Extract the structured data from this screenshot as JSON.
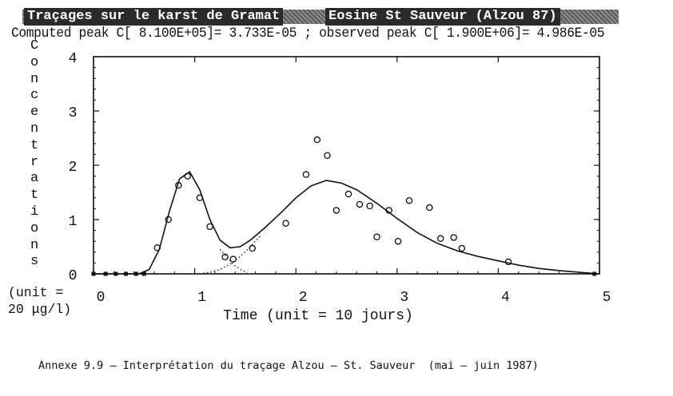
{
  "header": {
    "title_left": "Traçages sur le karst de Gramat",
    "title_right": "Eosine St Sauveur (Alzou 87)",
    "subtitle": "Computed peak C[ 8.100E+05]= 3.733E-05 ; observed peak C[ 1.900E+06]= 4.986E-05"
  },
  "y_axis_label_letters": [
    "C",
    "o",
    "n",
    "c",
    "e",
    "n",
    "t",
    "r",
    "a",
    "t",
    "i",
    "o",
    "n",
    "s"
  ],
  "y_unit_line1": "(unit =",
  "y_unit_line2": "20 μg/l)",
  "caption": "Annexe 9.9 – Interprétation du traçage Alzou – St. Sauveur  (mai – juin 1987)",
  "chart_data": {
    "type": "scatter",
    "xlabel": "Time (unit = 10 jours)",
    "ylabel": "Concentrations",
    "xlim": [
      0,
      5
    ],
    "ylim": [
      0,
      4
    ],
    "x_ticks": [
      "0",
      "1",
      "2",
      "3",
      "4",
      "5"
    ],
    "y_ticks": [
      "0",
      "1",
      "2",
      "3",
      "4"
    ],
    "series": [
      {
        "kind": "points",
        "marker": "circle",
        "x": [
          0.63,
          0.74,
          0.84,
          0.93,
          1.05,
          1.15,
          1.3,
          1.38,
          1.57,
          1.9,
          2.1,
          2.21,
          2.31,
          2.4,
          2.52,
          2.63,
          2.73,
          2.8,
          2.92,
          3.01,
          3.12,
          3.32,
          3.43,
          3.56,
          3.64,
          4.1
        ],
        "y": [
          0.48,
          1.0,
          1.63,
          1.8,
          1.4,
          0.87,
          0.31,
          0.27,
          0.47,
          0.93,
          1.83,
          2.47,
          2.18,
          1.17,
          1.47,
          1.28,
          1.25,
          0.68,
          1.17,
          0.6,
          1.35,
          1.22,
          0.65,
          0.67,
          0.47,
          0.22
        ]
      },
      {
        "kind": "line",
        "style": "solid",
        "x": [
          0.0,
          0.45,
          0.55,
          0.65,
          0.75,
          0.85,
          0.95,
          1.05,
          1.15,
          1.25,
          1.35,
          1.45,
          1.55,
          1.7,
          1.85,
          2.0,
          2.15,
          2.3,
          2.45,
          2.6,
          2.8,
          3.0,
          3.2,
          3.4,
          3.6,
          3.8,
          4.0,
          4.2,
          4.4,
          4.6,
          4.8,
          5.0
        ],
        "y": [
          0.0,
          0.0,
          0.08,
          0.45,
          1.15,
          1.75,
          1.88,
          1.55,
          1.0,
          0.62,
          0.48,
          0.5,
          0.62,
          0.86,
          1.12,
          1.4,
          1.62,
          1.72,
          1.67,
          1.55,
          1.3,
          1.02,
          0.76,
          0.56,
          0.42,
          0.32,
          0.24,
          0.16,
          0.1,
          0.06,
          0.03,
          0.0
        ]
      },
      {
        "kind": "line",
        "style": "dotted",
        "x": [
          1.05,
          1.15,
          1.25,
          1.35,
          1.45,
          1.55,
          1.65
        ],
        "y": [
          0.0,
          0.03,
          0.08,
          0.18,
          0.32,
          0.5,
          0.7
        ]
      },
      {
        "kind": "line",
        "style": "dotted",
        "x": [
          1.25,
          1.32,
          1.38,
          1.45,
          1.52
        ],
        "y": [
          0.45,
          0.3,
          0.18,
          0.08,
          0.02
        ]
      },
      {
        "kind": "points",
        "marker": "square",
        "x": [
          0.0,
          0.12,
          0.22,
          0.32,
          0.42,
          0.5,
          4.95
        ],
        "y": [
          0.0,
          0.0,
          0.0,
          0.0,
          0.0,
          0.0,
          0.0
        ]
      }
    ],
    "grid": false,
    "legend": "none"
  }
}
